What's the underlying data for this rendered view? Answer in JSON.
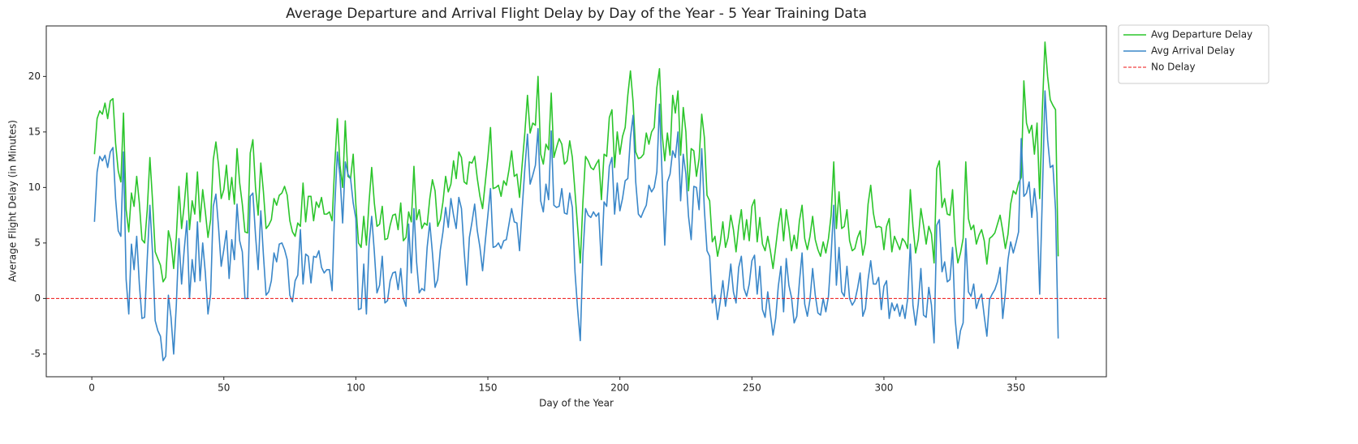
{
  "chart_data": {
    "type": "line",
    "title": "Average Departure and Arrival Flight Delay by Day of the Year - 5 Year Training Data",
    "xlabel": "Day of the Year",
    "ylabel": "Average Flight Delay (in Minutes)",
    "xlim": [
      -17.25,
      384.25
    ],
    "xticks": [
      0,
      50,
      100,
      150,
      200,
      250,
      300,
      350
    ],
    "ylim": [
      -7.05,
      24.55
    ],
    "yticks": [
      -5,
      0,
      5,
      10,
      15,
      20
    ],
    "grid": false,
    "legend": "outside upper right",
    "x": [
      1,
      2,
      3,
      4,
      5,
      6,
      7,
      8,
      9,
      10,
      11,
      12,
      13,
      14,
      15,
      16,
      17,
      18,
      19,
      20,
      21,
      22,
      23,
      24,
      25,
      26,
      27,
      28,
      29,
      30,
      31,
      32,
      33,
      34,
      35,
      36,
      37,
      38,
      39,
      40,
      41,
      42,
      43,
      44,
      45,
      46,
      47,
      48,
      49,
      50,
      51,
      52,
      53,
      54,
      55,
      56,
      57,
      58,
      59,
      60,
      61,
      62,
      63,
      64,
      65,
      66,
      67,
      68,
      69,
      70,
      71,
      72,
      73,
      74,
      75,
      76,
      77,
      78,
      79,
      80,
      81,
      82,
      83,
      84,
      85,
      86,
      87,
      88,
      89,
      90,
      91,
      92,
      93,
      94,
      95,
      96,
      97,
      98,
      99,
      100,
      101,
      102,
      103,
      104,
      105,
      106,
      107,
      108,
      109,
      110,
      111,
      112,
      113,
      114,
      115,
      116,
      117,
      118,
      119,
      120,
      121,
      122,
      123,
      124,
      125,
      126,
      127,
      128,
      129,
      130,
      131,
      132,
      133,
      134,
      135,
      136,
      137,
      138,
      139,
      140,
      141,
      142,
      143,
      144,
      145,
      146,
      147,
      148,
      149,
      150,
      151,
      152,
      153,
      154,
      155,
      156,
      157,
      158,
      159,
      160,
      161,
      162,
      163,
      164,
      165,
      166,
      167,
      168,
      169,
      170,
      171,
      172,
      173,
      174,
      175,
      176,
      177,
      178,
      179,
      180,
      181,
      182,
      183,
      184,
      185,
      186,
      187,
      188,
      189,
      190,
      191,
      192,
      193,
      194,
      195,
      196,
      197,
      198,
      199,
      200,
      201,
      202,
      203,
      204,
      205,
      206,
      207,
      208,
      209,
      210,
      211,
      212,
      213,
      214,
      215,
      216,
      217,
      218,
      219,
      220,
      221,
      222,
      223,
      224,
      225,
      226,
      227,
      228,
      229,
      230,
      231,
      232,
      233,
      234,
      235,
      236,
      237,
      238,
      239,
      240,
      241,
      242,
      243,
      244,
      245,
      246,
      247,
      248,
      249,
      250,
      251,
      252,
      253,
      254,
      255,
      256,
      257,
      258,
      259,
      260,
      261,
      262,
      263,
      264,
      265,
      266,
      267,
      268,
      269,
      270,
      271,
      272,
      273,
      274,
      275,
      276,
      277,
      278,
      279,
      280,
      281,
      282,
      283,
      284,
      285,
      286,
      287,
      288,
      289,
      290,
      291,
      292,
      293,
      294,
      295,
      296,
      297,
      298,
      299,
      300,
      301,
      302,
      303,
      304,
      305,
      306,
      307,
      308,
      309,
      310,
      311,
      312,
      313,
      314,
      315,
      316,
      317,
      318,
      319,
      320,
      321,
      322,
      323,
      324,
      325,
      326,
      327,
      328,
      329,
      330,
      331,
      332,
      333,
      334,
      335,
      336,
      337,
      338,
      339,
      340,
      341,
      342,
      343,
      344,
      345,
      346,
      347,
      348,
      349,
      350,
      351,
      352,
      353,
      354,
      355,
      356,
      357,
      358,
      359,
      360,
      361,
      362,
      363,
      364,
      365,
      366
    ],
    "series": [
      {
        "name": "Avg Departure Delay",
        "color": "#2cc52c",
        "values": [
          13,
          16.2,
          16.9,
          16.6,
          17.6,
          16.2,
          17.8,
          18,
          14,
          11.5,
          10.5,
          16.7,
          8,
          6,
          9.5,
          8.3,
          11,
          8.6,
          5.3,
          5,
          8,
          12.7,
          8.8,
          4.2,
          3.6,
          3,
          1.5,
          1.9,
          6.1,
          5.1,
          2.7,
          5.5,
          10.1,
          6.3,
          8.4,
          11.3,
          6.2,
          8.8,
          7.6,
          11.4,
          6.9,
          9.8,
          7.8,
          5.5,
          7.1,
          12.5,
          14.1,
          12,
          9,
          9.8,
          12,
          8.9,
          10.9,
          8.5,
          13.5,
          10.4,
          8.5,
          6,
          5.9,
          13.1,
          14.3,
          10,
          7.5,
          12.2,
          9.6,
          6.3,
          6.6,
          7.1,
          9,
          8.4,
          9.3,
          9.5,
          10.1,
          9.3,
          7,
          6,
          5.6,
          6.8,
          6.5,
          10.4,
          6.9,
          9.2,
          9.2,
          7,
          8.7,
          8.2,
          9.1,
          7.6,
          7.6,
          7.8,
          7,
          12,
          16.2,
          12,
          10,
          16,
          11,
          10.8,
          13,
          8.5,
          5,
          4.6,
          7.4,
          4.8,
          8.7,
          11.8,
          8.6,
          6.5,
          6.7,
          8.3,
          5.3,
          5.4,
          6.6,
          7.5,
          7.6,
          6.2,
          8.6,
          5.2,
          5.5,
          7.8,
          6.9,
          11.9,
          7.1,
          8,
          6.3,
          6.8,
          6.6,
          9,
          10.7,
          9.7,
          6.5,
          7.1,
          8.7,
          11,
          9.6,
          10.3,
          12.4,
          10.8,
          13.2,
          12.7,
          10.5,
          10.3,
          12.3,
          12.2,
          12.8,
          10.8,
          9.2,
          8.1,
          10.4,
          12.7,
          15.4,
          9.9,
          10,
          10.2,
          9.2,
          10.6,
          10.2,
          11.6,
          13.3,
          11,
          11.2,
          9.1,
          12.1,
          14.9,
          18.3,
          14.9,
          15.8,
          15.6,
          20,
          13,
          12.1,
          13.9,
          13.4,
          18.5,
          12.7,
          13.6,
          14.4,
          13.9,
          12.1,
          12.4,
          14.2,
          12.7,
          9.6,
          6.4,
          3.2,
          8.7,
          12.8,
          12.4,
          11.8,
          11.6,
          12.1,
          12.5,
          8.9,
          13,
          12.8,
          16.3,
          17,
          11.8,
          15,
          13,
          14.6,
          15.4,
          18.3,
          20.5,
          17.7,
          13.2,
          12.6,
          12.7,
          13,
          14.9,
          13.9,
          15,
          15.4,
          19,
          20.7,
          14.8,
          12.4,
          14.9,
          12.9,
          18.3,
          16.7,
          18.7,
          12.9,
          17.2,
          15,
          9.7,
          13.5,
          13.3,
          11,
          12.6,
          16.6,
          14.5,
          9.3,
          8.8,
          5.1,
          5.6,
          3.8,
          5,
          6.9,
          4.6,
          5.5,
          7.5,
          6.2,
          4.2,
          6.5,
          8,
          5.3,
          7.1,
          5.2,
          8.3,
          8.9,
          5.1,
          7.3,
          4.9,
          4.3,
          5.6,
          4.3,
          2.7,
          4.6,
          6.6,
          8.1,
          5.2,
          8,
          6.4,
          4.3,
          5.7,
          4.5,
          7,
          8.4,
          5.4,
          4.4,
          5.6,
          7.4,
          5.3,
          4.4,
          3.8,
          5.1,
          4.1,
          5.4,
          7.5,
          12.3,
          6.3,
          9.6,
          6.3,
          6.5,
          8,
          5.2,
          4.3,
          4.5,
          5.5,
          6.1,
          3.9,
          5,
          8.5,
          10.2,
          7.7,
          6.4,
          6.5,
          6.4,
          4.4,
          6.5,
          7.2,
          4.2,
          5.6,
          5,
          4.4,
          5.4,
          5.1,
          4.5,
          9.8,
          6.5,
          4.1,
          5.3,
          8.1,
          6.6,
          4.9,
          6.5,
          5.8,
          3.2,
          11.7,
          12.4,
          8.2,
          9,
          7.6,
          7.5,
          9.8,
          5.1,
          3.2,
          4.1,
          5.4,
          12.3,
          7.2,
          6.2,
          6.6,
          4.9,
          5.7,
          6.2,
          5.2,
          3.1,
          5.4,
          5.6,
          5.9,
          6.7,
          7.5,
          6.1,
          4.5,
          5.8,
          8.5,
          9.7,
          9.4,
          10.4,
          10.9,
          19.6,
          15.8,
          14.9,
          15.6,
          13,
          15.8,
          9,
          17,
          23.1,
          20,
          17.9,
          17.4,
          17,
          3.8
        ]
      },
      {
        "name": "Avg Arrival Delay",
        "color": "#3a87c9",
        "values": [
          6.9,
          11.4,
          12.8,
          12.4,
          12.9,
          11.8,
          13.2,
          13.6,
          9,
          6.1,
          5.6,
          13.2,
          1.7,
          -1.4,
          4.9,
          2.6,
          5.6,
          1.3,
          -1.8,
          -1.7,
          3.6,
          8.4,
          4.1,
          -2,
          -2.9,
          -3.4,
          -5.6,
          -5.2,
          0.3,
          -1.7,
          -5,
          -0.6,
          5.4,
          1.3,
          4.4,
          7,
          0,
          3.5,
          1.5,
          6.9,
          1.6,
          5,
          2.3,
          -1.4,
          0.4,
          8.3,
          9.4,
          6.4,
          2.9,
          4.4,
          6.1,
          1.8,
          5.3,
          3.5,
          8.5,
          5.2,
          4.2,
          0,
          0,
          9.2,
          9.5,
          5.7,
          2.6,
          7.9,
          3.9,
          0.3,
          0.6,
          1.6,
          4.1,
          3.3,
          4.9,
          5,
          4.4,
          3.5,
          0.3,
          -0.3,
          1.6,
          2.1,
          6.2,
          1.3,
          4,
          3.8,
          1.4,
          3.8,
          3.7,
          4.3,
          2.8,
          2.3,
          2.6,
          2.6,
          0.7,
          8.2,
          13.2,
          11,
          6.8,
          12.3,
          11.2,
          10.8,
          8.6,
          7.2,
          -1,
          -0.9,
          3.1,
          -1.4,
          4.9,
          7.4,
          4.2,
          0.5,
          1.2,
          3.8,
          -0.4,
          -0.2,
          1.6,
          2.3,
          2.4,
          0.8,
          2.7,
          0,
          -0.7,
          6.7,
          2.3,
          8.1,
          3.3,
          0.5,
          0.9,
          0.7,
          4.6,
          6.8,
          4.1,
          1,
          1.7,
          4.4,
          6,
          8.2,
          6.4,
          9,
          7.5,
          6.3,
          9.1,
          8.1,
          4.3,
          1.2,
          5.5,
          6.9,
          8.5,
          6.1,
          4.6,
          2.5,
          5.1,
          7.5,
          9.9,
          4.6,
          4.7,
          5,
          4.5,
          5.2,
          5.3,
          6.7,
          8.1,
          6.9,
          6.8,
          4.3,
          8.1,
          11.7,
          14.8,
          10.3,
          11.1,
          12,
          15.3,
          8.8,
          7.8,
          10.3,
          8.9,
          15.1,
          8.4,
          8.2,
          8.3,
          9.9,
          7.7,
          7.6,
          9.5,
          8.2,
          2.4,
          -1,
          -3.8,
          3.9,
          8.1,
          7.5,
          7.3,
          7.8,
          7.4,
          7.7,
          3,
          8.7,
          8.3,
          11.9,
          12.7,
          7.6,
          10.4,
          7.9,
          9,
          10.6,
          10.8,
          14.5,
          16.5,
          10.5,
          7.6,
          7.3,
          7.9,
          8.4,
          10.2,
          9.6,
          10,
          11.4,
          17.5,
          11,
          4.8,
          10.5,
          11.2,
          13.3,
          12.7,
          15,
          8.8,
          13,
          11.2,
          7.4,
          5.3,
          10.1,
          10,
          8,
          13.5,
          8,
          4.3,
          3.8,
          -0.4,
          0.3,
          -1.9,
          -0.3,
          1.6,
          -0.7,
          0.9,
          3.1,
          0.6,
          -0.4,
          2.8,
          3.8,
          0.9,
          0.2,
          1.3,
          3.4,
          3.9,
          0.4,
          2.9,
          -1,
          -1.7,
          0.6,
          -1.4,
          -3.3,
          -1.8,
          1.1,
          2.9,
          -1.2,
          3.6,
          1.2,
          0.1,
          -2.2,
          -1.6,
          1.5,
          4.1,
          -0.5,
          -1.6,
          -0.1,
          2.7,
          0.3,
          -1.3,
          -1.5,
          0,
          -1.2,
          0.2,
          3.9,
          8.4,
          1.2,
          4.6,
          0.6,
          0.2,
          2.9,
          0,
          -0.6,
          -0.2,
          0.9,
          2.3,
          -1.6,
          -0.9,
          1.7,
          3.4,
          1.3,
          1.3,
          1.9,
          -1,
          1.1,
          1.6,
          -1.8,
          -0.4,
          -1.1,
          -0.5,
          -1.6,
          -0.6,
          -1.8,
          0,
          4.9,
          -0.6,
          -2.4,
          -0.5,
          2.7,
          -1.5,
          -1.7,
          1,
          -0.6,
          -4,
          6.6,
          7.1,
          2.4,
          3.3,
          1.5,
          1.7,
          4.6,
          -1.9,
          -4.5,
          -2.9,
          -2.2,
          5.4,
          0.6,
          0.2,
          1.3,
          -0.9,
          -0.1,
          0.4,
          -1.6,
          -3.4,
          -0.1,
          0.4,
          0.8,
          1.5,
          2.8,
          -1.8,
          0.5,
          3.5,
          5.1,
          4.1,
          5,
          6,
          14.4,
          9.2,
          9.5,
          10.5,
          7.3,
          9.9,
          7.7,
          0.4,
          9.2,
          18.7,
          14.3,
          11.8,
          12,
          8,
          -3.6
        ]
      }
    ],
    "reference_line": {
      "name": "No Delay",
      "value": 0,
      "color": "#ee1111",
      "style": "dashed"
    }
  }
}
